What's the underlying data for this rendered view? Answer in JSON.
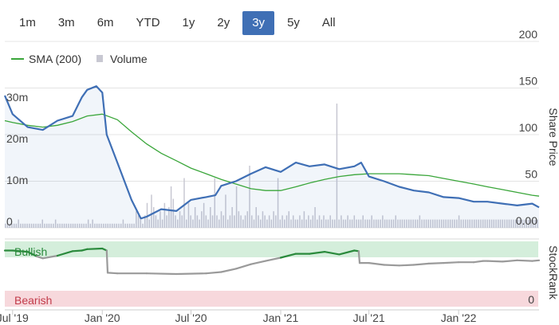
{
  "range_buttons": [
    {
      "label": "1m",
      "active": false
    },
    {
      "label": "3m",
      "active": false
    },
    {
      "label": "6m",
      "active": false
    },
    {
      "label": "YTD",
      "active": false
    },
    {
      "label": "1y",
      "active": false
    },
    {
      "label": "2y",
      "active": false
    },
    {
      "label": "3y",
      "active": true
    },
    {
      "label": "5y",
      "active": false
    },
    {
      "label": "All",
      "active": false
    }
  ],
  "legend": {
    "sma_label": "SMA (200)",
    "volume_label": "Volume"
  },
  "colors": {
    "price": "#3f6fb5",
    "sma": "#3aa63a",
    "volume": "#c8c8d2",
    "bullish_band": "#d4eedb",
    "bearish_band": "#f7d8dc",
    "stockrank_green": "#2a8a3c",
    "stockrank_grey": "#9a9a9a",
    "active_button": "#3f6fb5"
  },
  "chart_data": [
    {
      "type": "line",
      "title": "",
      "y_axis_title": "Share Price",
      "price_ticks": [
        "200",
        "150",
        "100",
        "50",
        "0.00"
      ],
      "ylim": [
        0,
        200
      ],
      "volume_ticks": [
        "30m",
        "20m",
        "10m",
        "0"
      ],
      "volume_ylim": [
        0,
        45
      ],
      "x_ticks": [
        "Jul '19",
        "Jan '20",
        "Jul '20",
        "Jan '21",
        "Jul '21",
        "Jan '22"
      ],
      "x_range": [
        "2019-06-15",
        "2022-06-15"
      ],
      "series": [
        {
          "name": "Share Price",
          "x": [
            "2019-06-15",
            "2019-07-01",
            "2019-08-01",
            "2019-09-01",
            "2019-10-01",
            "2019-11-01",
            "2019-11-20",
            "2019-12-01",
            "2019-12-20",
            "2020-01-01",
            "2020-01-10",
            "2020-02-01",
            "2020-03-01",
            "2020-03-20",
            "2020-04-01",
            "2020-05-01",
            "2020-06-01",
            "2020-07-01",
            "2020-08-01",
            "2020-08-20",
            "2020-09-01",
            "2020-10-01",
            "2020-11-01",
            "2020-12-01",
            "2021-01-01",
            "2021-02-01",
            "2021-03-01",
            "2021-04-01",
            "2021-05-01",
            "2021-06-01",
            "2021-06-15",
            "2021-07-01",
            "2021-08-01",
            "2021-09-01",
            "2021-10-01",
            "2021-11-01",
            "2021-12-01",
            "2022-01-01",
            "2022-02-01",
            "2022-03-01",
            "2022-04-01",
            "2022-05-01",
            "2022-06-01",
            "2022-06-15"
          ],
          "values": [
            142,
            122,
            108,
            105,
            115,
            120,
            140,
            148,
            152,
            145,
            100,
            70,
            30,
            10,
            12,
            20,
            18,
            30,
            33,
            35,
            45,
            50,
            58,
            65,
            60,
            70,
            66,
            68,
            63,
            66,
            70,
            55,
            50,
            44,
            40,
            38,
            33,
            32,
            28,
            28,
            26,
            24,
            26,
            22
          ]
        },
        {
          "name": "SMA (200)",
          "x": [
            "2019-06-15",
            "2019-07-01",
            "2019-08-01",
            "2019-09-01",
            "2019-10-01",
            "2019-11-01",
            "2019-12-01",
            "2020-01-01",
            "2020-02-01",
            "2020-03-01",
            "2020-04-01",
            "2020-05-01",
            "2020-06-01",
            "2020-07-01",
            "2020-08-01",
            "2020-09-01",
            "2020-10-01",
            "2020-11-01",
            "2020-12-01",
            "2021-01-01",
            "2021-02-01",
            "2021-03-01",
            "2021-04-01",
            "2021-05-01",
            "2021-06-01",
            "2021-07-01",
            "2021-08-01",
            "2021-09-01",
            "2021-10-01",
            "2021-11-01",
            "2021-12-01",
            "2022-01-01",
            "2022-02-01",
            "2022-03-01",
            "2022-04-01",
            "2022-05-01",
            "2022-06-01",
            "2022-06-15"
          ],
          "values": [
            115,
            113,
            110,
            108,
            110,
            114,
            120,
            122,
            116,
            103,
            90,
            80,
            72,
            64,
            58,
            52,
            47,
            42,
            40,
            40,
            44,
            48,
            52,
            55,
            57,
            58,
            58,
            58,
            57,
            56,
            53,
            50,
            47,
            44,
            41,
            38,
            35,
            34
          ]
        },
        {
          "name": "Volume",
          "values": [
            1,
            1,
            1,
            1,
            1,
            1,
            2,
            1,
            1,
            1,
            1,
            1,
            1,
            1,
            1,
            1,
            1,
            2,
            1,
            1,
            1,
            1,
            1,
            2,
            1,
            1,
            1,
            1,
            1,
            1,
            1,
            1,
            1,
            1,
            1,
            1,
            1,
            1,
            2,
            1,
            2,
            1,
            1,
            1,
            1,
            1,
            1,
            1,
            1,
            1,
            1,
            1,
            1,
            1,
            2,
            1,
            1,
            1,
            1,
            1,
            4,
            3,
            2,
            1,
            3,
            6,
            2,
            8,
            5,
            3,
            2,
            4,
            2,
            6,
            3,
            5,
            10,
            7,
            3,
            2,
            4,
            3,
            12,
            2,
            6,
            3,
            2,
            5,
            3,
            2,
            4,
            6,
            3,
            2,
            5,
            3,
            12,
            3,
            2,
            4,
            3,
            8,
            2,
            3,
            5,
            3,
            10,
            4,
            3,
            2,
            3,
            4,
            15,
            3,
            2,
            5,
            3,
            2,
            4,
            3,
            2,
            3,
            2,
            4,
            3,
            12,
            2,
            3,
            2,
            3,
            4,
            2,
            3,
            2,
            2,
            3,
            2,
            4,
            2,
            3,
            2,
            3,
            5,
            2,
            3,
            2,
            3,
            2,
            2,
            3,
            2,
            2,
            30,
            2,
            3,
            2,
            2,
            3,
            2,
            2,
            3,
            2,
            2,
            2,
            3,
            2,
            2,
            2,
            3,
            2,
            2,
            2,
            2,
            3,
            2,
            2,
            2,
            2,
            2,
            3,
            2,
            2,
            2,
            2,
            2,
            2,
            2,
            2,
            2,
            2,
            3,
            2,
            2,
            2,
            2,
            2,
            2,
            2,
            2,
            2,
            2,
            2,
            2,
            2,
            2,
            2,
            2,
            2,
            3,
            2,
            2,
            2,
            2,
            2,
            2,
            2,
            2,
            2,
            2,
            2,
            2,
            2,
            2,
            2,
            2,
            2,
            2,
            2,
            2,
            2,
            2,
            2,
            2,
            2,
            2,
            2,
            2,
            2,
            2,
            2,
            2,
            2,
            2,
            2,
            2
          ]
        }
      ]
    },
    {
      "type": "line",
      "title": "",
      "y_axis_title": "StockRank",
      "band_labels": {
        "bullish": "Bullish",
        "bearish": "Bearish",
        "zero": "0"
      },
      "ylim": [
        0,
        100
      ],
      "series": [
        {
          "name": "StockRank",
          "x": [
            "2019-06-15",
            "2019-07-01",
            "2019-08-01",
            "2019-08-20",
            "2019-09-01",
            "2019-10-01",
            "2019-11-01",
            "2019-11-20",
            "2019-12-01",
            "2020-01-01",
            "2020-01-10",
            "2020-01-12",
            "2020-02-01",
            "2020-04-01",
            "2020-06-01",
            "2020-08-01",
            "2020-09-01",
            "2020-10-01",
            "2020-11-01",
            "2020-12-01",
            "2021-01-01",
            "2021-02-01",
            "2021-03-01",
            "2021-04-01",
            "2021-05-01",
            "2021-06-01",
            "2021-06-10",
            "2021-06-12",
            "2021-07-01",
            "2021-08-01",
            "2021-09-01",
            "2021-10-01",
            "2021-11-01",
            "2021-12-01",
            "2022-01-01",
            "2022-02-01",
            "2022-02-20",
            "2022-03-01",
            "2022-04-01",
            "2022-05-01",
            "2022-06-01",
            "2022-06-15"
          ],
          "values": [
            86,
            86,
            84,
            77,
            74,
            78,
            85,
            86,
            88,
            89,
            86,
            52,
            51,
            51,
            50,
            51,
            53,
            58,
            65,
            70,
            75,
            81,
            81,
            84,
            80,
            86,
            85,
            67,
            67,
            64,
            63,
            64,
            66,
            67,
            68,
            68,
            70,
            70,
            69,
            71,
            70,
            71
          ]
        }
      ]
    }
  ]
}
